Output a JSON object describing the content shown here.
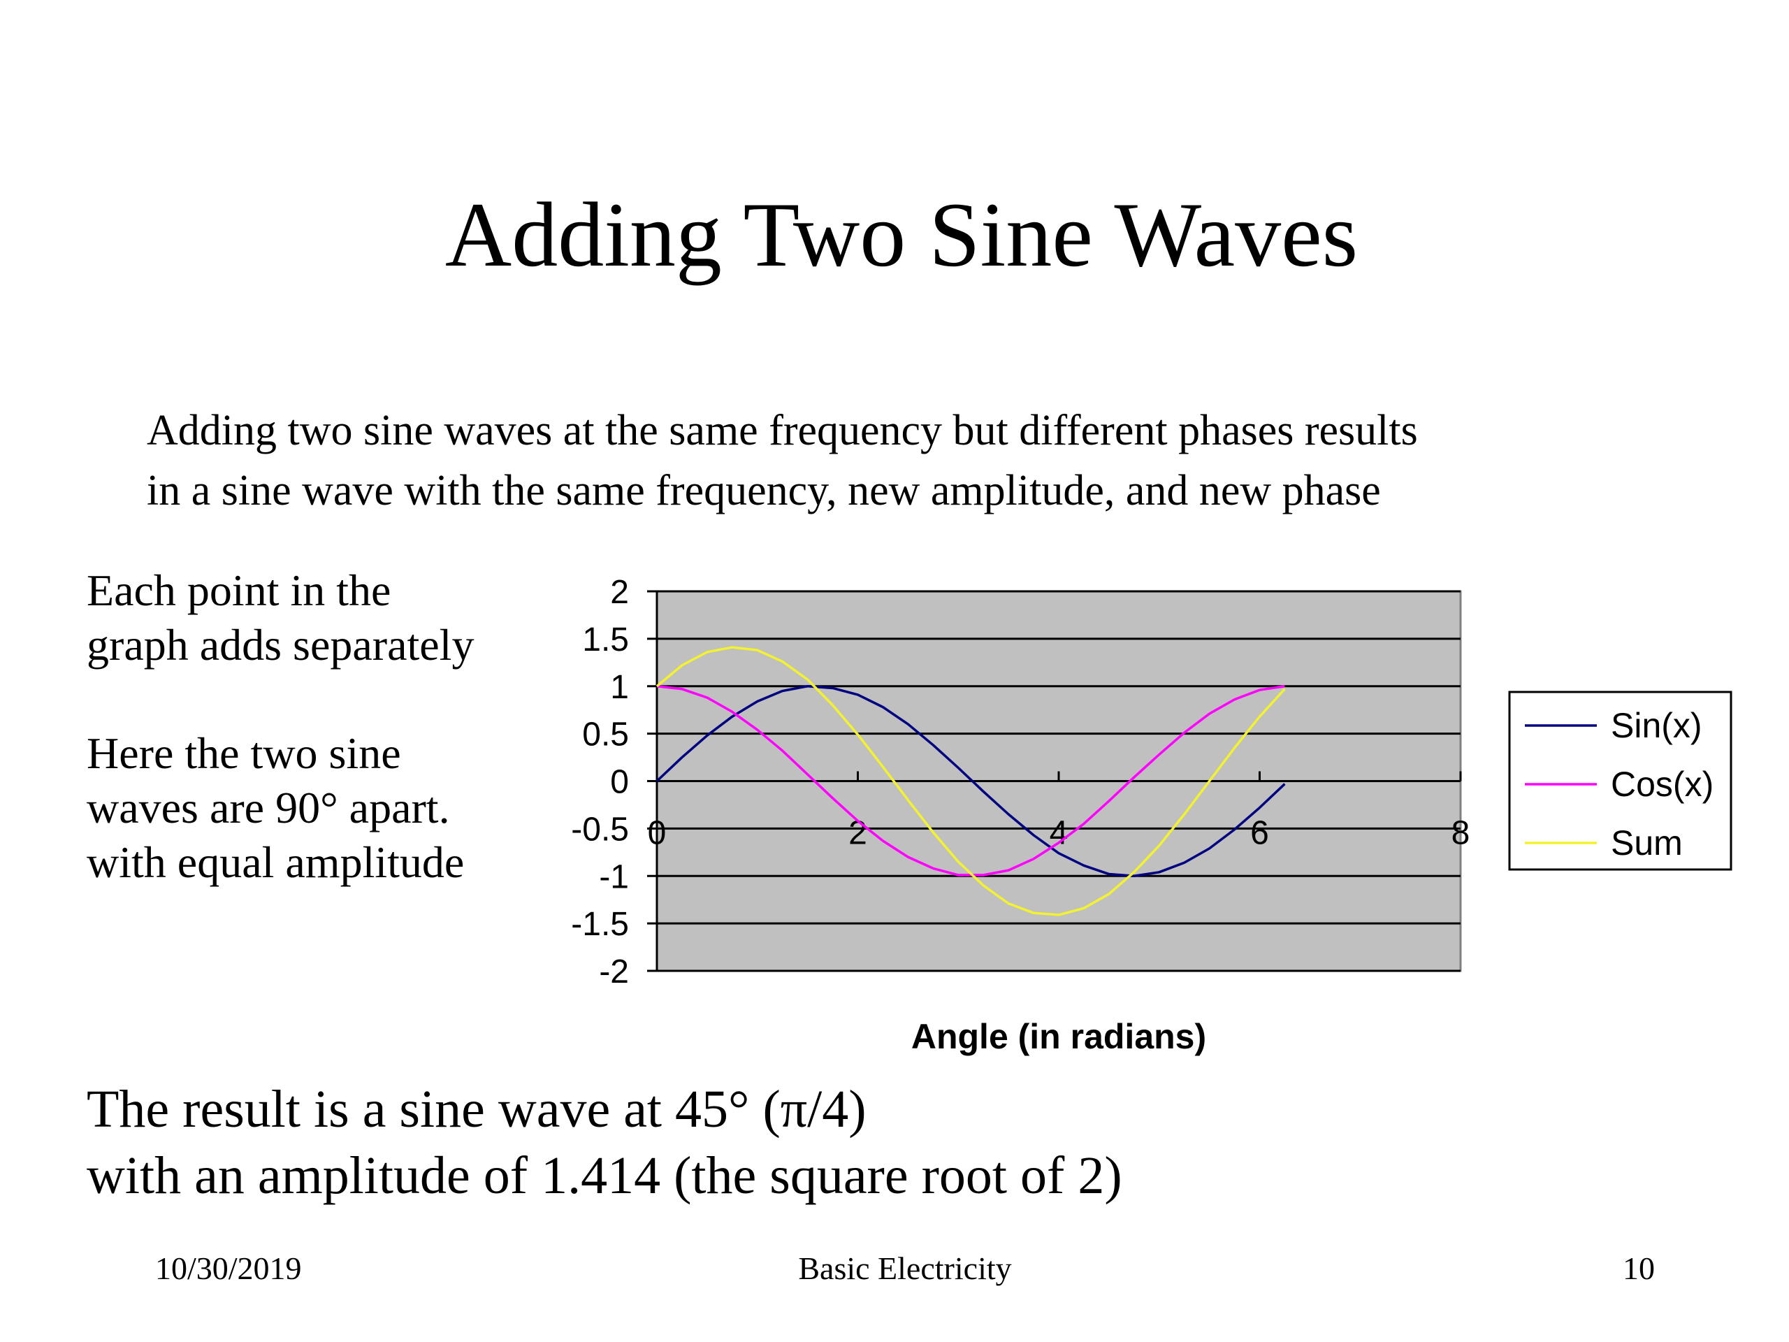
{
  "slide": {
    "title": "Adding Two Sine Waves",
    "intro": [
      "Adding two sine waves at the same frequency but different phases results",
      "in a sine wave with the same frequency, new amplitude, and new phase"
    ],
    "note_a": [
      "Each point in the",
      "graph adds separately"
    ],
    "note_b": [
      "Here the two sine",
      "waves are 90° apart.",
      "with equal amplitude"
    ],
    "result": [
      "The result is a sine wave at 45° (π/4)",
      "with an amplitude of 1.414 (the square root of 2)"
    ],
    "footer": {
      "date": "10/30/2019",
      "center": "Basic Electricity",
      "page": "10"
    }
  },
  "chart_data": {
    "type": "line",
    "x_label": "Angle (in radians)",
    "x": [
      0,
      0.25,
      0.5,
      0.75,
      1,
      1.25,
      1.5,
      1.75,
      2,
      2.25,
      2.5,
      2.75,
      3,
      3.25,
      3.5,
      3.75,
      4,
      4.25,
      4.5,
      4.75,
      5,
      5.25,
      5.5,
      5.75,
      6,
      6.25
    ],
    "series": [
      {
        "name": "Sin(x)",
        "color": "#000080",
        "values": [
          0,
          0.25,
          0.48,
          0.68,
          0.84,
          0.95,
          1.0,
          0.98,
          0.91,
          0.78,
          0.6,
          0.38,
          0.14,
          -0.11,
          -0.35,
          -0.57,
          -0.76,
          -0.89,
          -0.98,
          -1.0,
          -0.96,
          -0.86,
          -0.71,
          -0.51,
          -0.28,
          -0.03
        ]
      },
      {
        "name": "Cos(x)",
        "color": "#ff00ff",
        "values": [
          1,
          0.97,
          0.88,
          0.73,
          0.54,
          0.32,
          0.07,
          -0.18,
          -0.42,
          -0.63,
          -0.8,
          -0.92,
          -0.99,
          -0.99,
          -0.94,
          -0.82,
          -0.65,
          -0.45,
          -0.21,
          0.04,
          0.28,
          0.51,
          0.71,
          0.86,
          0.96,
          1.0
        ]
      },
      {
        "name": "Sum",
        "color": "#f2f230",
        "values": [
          1,
          1.22,
          1.36,
          1.41,
          1.38,
          1.26,
          1.07,
          0.8,
          0.49,
          0.15,
          -0.2,
          -0.54,
          -0.85,
          -1.1,
          -1.29,
          -1.39,
          -1.41,
          -1.34,
          -1.19,
          -0.96,
          -0.68,
          -0.35,
          0.0,
          0.35,
          0.68,
          0.97
        ]
      }
    ],
    "xlim": [
      0,
      8
    ],
    "xticks": [
      0,
      2,
      4,
      6,
      8
    ],
    "ylim": [
      -2,
      2
    ],
    "yticks": [
      -2,
      -1.5,
      -1,
      -0.5,
      0,
      0.5,
      1,
      1.5,
      2
    ],
    "grid": true,
    "plot_background": "#c0c0c0",
    "legend": "right"
  }
}
